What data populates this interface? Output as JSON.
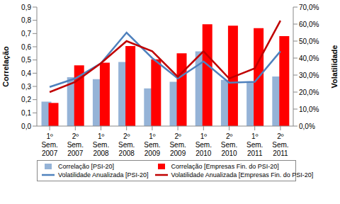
{
  "chart_data": {
    "type": "bar",
    "ylabel": "Correlação",
    "y2label": "Volatilidade",
    "grid": false,
    "legend": "bottom",
    "categories": [
      "1º Sem. 2007",
      "2º Sem. 2007",
      "1º Sem. 2008",
      "2º Sem. 2008",
      "1º Sem. 2009",
      "2º Sem. 2009",
      "1º Sem. 2010",
      "2º Sem. 2010",
      "1º Sem. 2011",
      "2º Sem. 2011"
    ],
    "ylim": [
      0,
      0.9
    ],
    "yticks": [
      {
        "value": 0,
        "label": "0,0"
      },
      {
        "value": 0.1,
        "label": "0,1"
      },
      {
        "value": 0.2,
        "label": "0,2"
      },
      {
        "value": 0.3,
        "label": "0,3"
      },
      {
        "value": 0.4,
        "label": "0,4"
      },
      {
        "value": 0.5,
        "label": "0,5"
      },
      {
        "value": 0.6,
        "label": "0,6"
      },
      {
        "value": 0.7,
        "label": "0,7"
      },
      {
        "value": 0.8,
        "label": "0,8"
      },
      {
        "value": 0.9,
        "label": "0,9"
      }
    ],
    "y2lim": [
      0,
      70
    ],
    "y2ticks": [
      {
        "value": 0,
        "label": "0,0%"
      },
      {
        "value": 10,
        "label": "10,0%"
      },
      {
        "value": 20,
        "label": "20,0%"
      },
      {
        "value": 30,
        "label": "30,0%"
      },
      {
        "value": 40,
        "label": "40,0%"
      },
      {
        "value": 50,
        "label": "50,0%"
      },
      {
        "value": 60,
        "label": "60,0%"
      },
      {
        "value": 70,
        "label": "70,0%"
      }
    ],
    "series": [
      {
        "name": "Correlação [PSI-20]",
        "type": "bar",
        "color": "#95b3d7",
        "values": [
          0.185,
          0.37,
          0.355,
          0.485,
          0.285,
          0.335,
          0.565,
          0.35,
          0.335,
          0.375
        ]
      },
      {
        "name": "Correlação [Empresas Fin. do PSI-20]",
        "type": "bar",
        "color": "#ff0000",
        "values": [
          0.175,
          0.46,
          0.48,
          0.605,
          0.505,
          0.55,
          0.77,
          0.76,
          0.74,
          0.68
        ]
      },
      {
        "name": "Volatilidade Anualizada [PSI-20]",
        "type": "line",
        "axis": "y2",
        "color": "#4f81bd",
        "values": [
          23,
          28,
          37,
          55,
          40,
          28,
          38,
          25.5,
          26,
          44
        ]
      },
      {
        "name": "Volatilidade Anualizada [Empresas Fin. do PSI-20]",
        "type": "line",
        "axis": "y2",
        "color": "#c00000",
        "values": [
          20,
          26,
          37,
          50,
          44,
          29,
          44,
          28,
          34,
          62
        ]
      }
    ]
  }
}
